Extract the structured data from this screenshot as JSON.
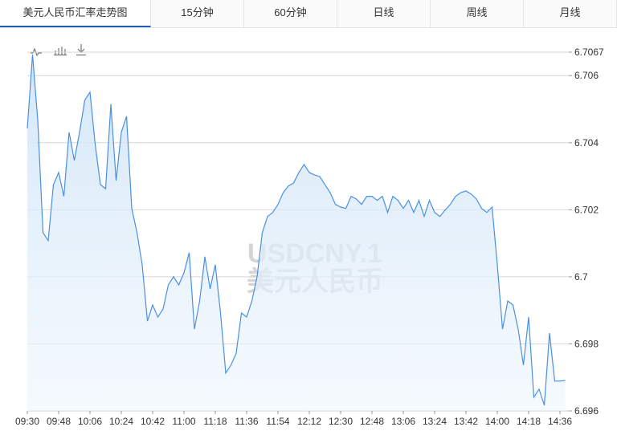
{
  "tabs": [
    "美元人民币汇率走势图",
    "15分钟",
    "60分钟",
    "日线",
    "周线",
    "月线"
  ],
  "chart_data": {
    "type": "line",
    "watermark": [
      "USDCNY.1",
      "美元人民币"
    ],
    "x": [
      "09:30",
      "09:33",
      "09:36",
      "09:39",
      "09:42",
      "09:45",
      "09:48",
      "09:51",
      "09:54",
      "09:57",
      "10:00",
      "10:03",
      "10:06",
      "10:09",
      "10:12",
      "10:15",
      "10:18",
      "10:21",
      "10:24",
      "10:27",
      "10:30",
      "10:33",
      "10:36",
      "10:39",
      "10:42",
      "10:45",
      "10:48",
      "10:51",
      "10:54",
      "10:57",
      "11:00",
      "11:03",
      "11:06",
      "11:09",
      "11:12",
      "11:15",
      "11:18",
      "11:21",
      "11:24",
      "11:27",
      "11:30",
      "11:33",
      "11:36",
      "11:39",
      "11:42",
      "11:45",
      "11:48",
      "11:51",
      "11:54",
      "11:57",
      "12:00",
      "12:03",
      "12:06",
      "12:09",
      "12:12",
      "12:15",
      "12:18",
      "12:21",
      "12:24",
      "12:27",
      "12:30",
      "12:33",
      "12:36",
      "12:39",
      "12:42",
      "12:45",
      "12:48",
      "12:51",
      "12:54",
      "12:57",
      "13:00",
      "13:03",
      "13:06",
      "13:09",
      "13:12",
      "13:15",
      "13:18",
      "13:21",
      "13:24",
      "13:27",
      "13:30",
      "13:33",
      "13:36",
      "13:39",
      "13:42",
      "13:45",
      "13:48",
      "13:51",
      "13:54",
      "13:57",
      "14:00",
      "14:03",
      "14:06",
      "14:09",
      "14:12",
      "14:15",
      "14:18",
      "14:21",
      "14:24",
      "14:27",
      "14:30",
      "14:33",
      "14:36",
      "14:39"
    ],
    "series": [
      {
        "name": "USDCNY.1",
        "color": "#4a90e2",
        "values": [
          6.70443,
          6.70663,
          6.70467,
          6.70132,
          6.70108,
          6.70275,
          6.70311,
          6.7024,
          6.70431,
          6.70347,
          6.70431,
          6.70527,
          6.70551,
          6.70395,
          6.70275,
          6.70263,
          6.70515,
          6.70287,
          6.70431,
          6.70479,
          6.70204,
          6.70132,
          6.70036,
          6.69868,
          6.69916,
          6.6988,
          6.69904,
          6.69976,
          6.7,
          6.69976,
          6.70012,
          6.70072,
          6.69844,
          6.69928,
          6.7006,
          6.69964,
          6.70036,
          6.69892,
          6.69713,
          6.69737,
          6.69772,
          6.69892,
          6.6988,
          6.69928,
          6.7,
          6.70132,
          6.7018,
          6.70192,
          6.70216,
          6.70251,
          6.70271,
          6.7028,
          6.70311,
          6.70335,
          6.70311,
          6.70304,
          6.70299,
          6.70275,
          6.70251,
          6.70216,
          6.70208,
          6.70204,
          6.7024,
          6.70232,
          6.70216,
          6.7024,
          6.7024,
          6.70228,
          6.7024,
          6.70192,
          6.7024,
          6.70228,
          6.70204,
          6.70228,
          6.70192,
          6.70228,
          6.7018,
          6.70228,
          6.70192,
          6.7018,
          6.70199,
          6.70216,
          6.7024,
          6.70251,
          6.70256,
          6.70247,
          6.70232,
          6.70204,
          6.70192,
          6.70208,
          6.70036,
          6.69844,
          6.69928,
          6.69916,
          6.69844,
          6.69737,
          6.6988,
          6.69641,
          6.69665,
          6.69617,
          6.69832,
          6.69689,
          6.69689,
          6.69691
        ]
      }
    ],
    "xticks": [
      "09:30",
      "09:48",
      "10:06",
      "10:24",
      "10:42",
      "11:00",
      "11:18",
      "11:36",
      "11:54",
      "12:12",
      "12:30",
      "12:48",
      "13:06",
      "13:24",
      "13:42",
      "14:00",
      "14:18",
      "14:36"
    ],
    "ylim": [
      6.696,
      6.7067
    ],
    "yticks": [
      6.696,
      6.698,
      6.7,
      6.702,
      6.704,
      6.706,
      6.7067
    ],
    "grid": true
  }
}
